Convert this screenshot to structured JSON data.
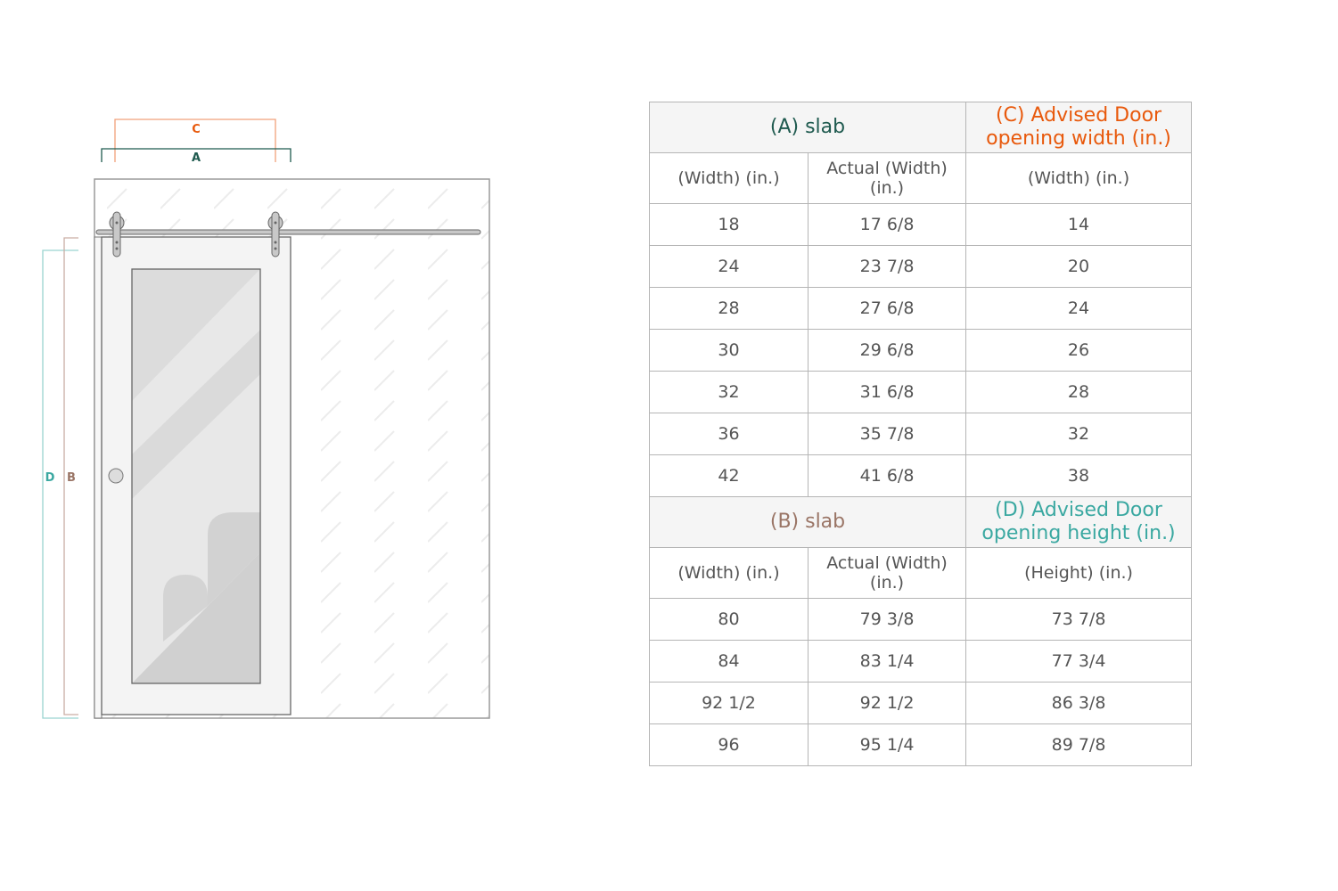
{
  "diagram": {
    "labels": {
      "c": "C",
      "a": "A",
      "d": "D",
      "b": "B"
    },
    "colors": {
      "a": "#1f5a4f",
      "c": "#e8590c",
      "b": "#9a7566",
      "d": "#3aa8a1"
    }
  },
  "width_table": {
    "slab_header": "(A) slab",
    "advised_header": "(C) Advised Door opening width (in.)",
    "columns": [
      "(Width) (in.)",
      "Actual (Width) (in.)",
      "(Width) (in.)"
    ],
    "rows": [
      [
        "18",
        "17 6/8",
        "14"
      ],
      [
        "24",
        "23 7/8",
        "20"
      ],
      [
        "28",
        "27 6/8",
        "24"
      ],
      [
        "30",
        "29 6/8",
        "26"
      ],
      [
        "32",
        "31 6/8",
        "28"
      ],
      [
        "36",
        "35 7/8",
        "32"
      ],
      [
        "42",
        "41 6/8",
        "38"
      ]
    ]
  },
  "height_table": {
    "slab_header": "(B) slab",
    "advised_header": "(D) Advised Door opening height (in.)",
    "columns": [
      "(Width) (in.)",
      "Actual (Width) (in.)",
      "(Height) (in.)"
    ],
    "rows": [
      [
        "80",
        "79 3/8",
        "73 7/8"
      ],
      [
        "84",
        "83 1/4",
        "77 3/4"
      ],
      [
        "92 1/2",
        "92 1/2",
        "86 3/8"
      ],
      [
        "96",
        "95 1/4",
        "89 7/8"
      ]
    ]
  }
}
